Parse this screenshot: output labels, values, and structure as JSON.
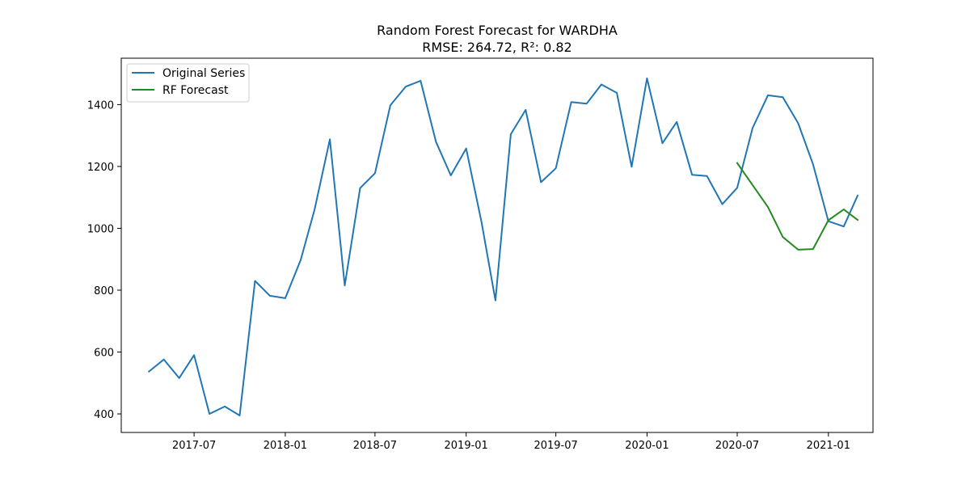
{
  "chart_data": {
    "type": "line",
    "title": "Random Forest Forecast for WARDHA",
    "subtitle": "RMSE: 264.72, R²: 0.82",
    "xlabel": "",
    "ylabel": "",
    "x_range": [
      "2017-02-04",
      "2021-04-01"
    ],
    "ylim": [
      340,
      1550
    ],
    "x_ticks": [
      {
        "date": "2017-07-01",
        "label": "2017-07"
      },
      {
        "date": "2018-01-01",
        "label": "2018-01"
      },
      {
        "date": "2018-07-01",
        "label": "2018-07"
      },
      {
        "date": "2019-01-01",
        "label": "2019-01"
      },
      {
        "date": "2019-07-01",
        "label": "2019-07"
      },
      {
        "date": "2020-01-01",
        "label": "2020-01"
      },
      {
        "date": "2020-07-01",
        "label": "2020-07"
      },
      {
        "date": "2021-01-01",
        "label": "2021-01"
      }
    ],
    "y_ticks": [
      400,
      600,
      800,
      1000,
      1200,
      1400
    ],
    "grid": false,
    "legend_position": "top-left",
    "series": [
      {
        "name": "Original Series",
        "color": "#1f77b4",
        "points": [
          [
            "2017-04-01",
            537
          ],
          [
            "2017-05-01",
            576
          ],
          [
            "2017-06-01",
            516
          ],
          [
            "2017-07-01",
            590
          ],
          [
            "2017-08-01",
            400
          ],
          [
            "2017-09-01",
            424
          ],
          [
            "2017-10-01",
            395
          ],
          [
            "2017-11-01",
            830
          ],
          [
            "2017-12-01",
            782
          ],
          [
            "2018-01-01",
            774
          ],
          [
            "2018-02-01",
            897
          ],
          [
            "2018-03-01",
            1060
          ],
          [
            "2018-04-01",
            1288
          ],
          [
            "2018-05-01",
            815
          ],
          [
            "2018-06-01",
            1130
          ],
          [
            "2018-07-01",
            1178
          ],
          [
            "2018-08-01",
            1398
          ],
          [
            "2018-09-01",
            1458
          ],
          [
            "2018-10-01",
            1477
          ],
          [
            "2018-11-01",
            1280
          ],
          [
            "2018-12-01",
            1171
          ],
          [
            "2019-01-01",
            1258
          ],
          [
            "2019-02-01",
            1020
          ],
          [
            "2019-03-01",
            767
          ],
          [
            "2019-04-01",
            1304
          ],
          [
            "2019-05-01",
            1383
          ],
          [
            "2019-06-01",
            1149
          ],
          [
            "2019-07-01",
            1194
          ],
          [
            "2019-08-01",
            1408
          ],
          [
            "2019-09-01",
            1403
          ],
          [
            "2019-10-01",
            1465
          ],
          [
            "2019-11-01",
            1438
          ],
          [
            "2019-12-01",
            1199
          ],
          [
            "2020-01-01",
            1485
          ],
          [
            "2020-02-01",
            1275
          ],
          [
            "2020-03-01",
            1344
          ],
          [
            "2020-04-01",
            1173
          ],
          [
            "2020-05-01",
            1169
          ],
          [
            "2020-06-01",
            1078
          ],
          [
            "2020-07-01",
            1131
          ],
          [
            "2020-08-01",
            1324
          ],
          [
            "2020-09-01",
            1430
          ],
          [
            "2020-10-01",
            1424
          ],
          [
            "2020-11-01",
            1340
          ],
          [
            "2020-12-01",
            1207
          ],
          [
            "2021-01-01",
            1023
          ],
          [
            "2021-02-01",
            1006
          ],
          [
            "2021-03-01",
            1106
          ]
        ]
      },
      {
        "name": "RF Forecast",
        "color": "#228b22",
        "points": [
          [
            "2020-07-01",
            1211
          ],
          [
            "2020-08-01",
            1140
          ],
          [
            "2020-09-01",
            1069
          ],
          [
            "2020-10-01",
            972
          ],
          [
            "2020-11-01",
            931
          ],
          [
            "2020-12-01",
            933
          ],
          [
            "2021-01-01",
            1026
          ],
          [
            "2021-02-01",
            1061
          ],
          [
            "2021-03-01",
            1027
          ]
        ]
      }
    ]
  }
}
